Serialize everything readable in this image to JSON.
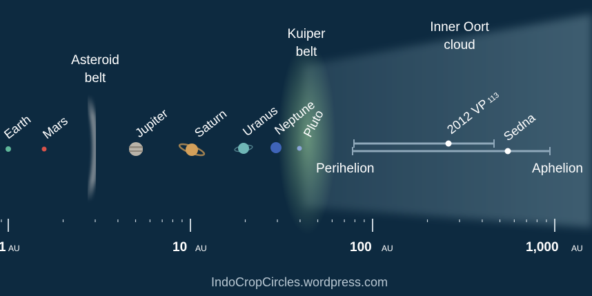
{
  "regions": {
    "asteroid_belt": [
      "Asteroid",
      "belt"
    ],
    "kuiper_belt": [
      "Kuiper",
      "belt"
    ],
    "inner_oort_cloud": [
      "Inner Oort",
      "cloud"
    ]
  },
  "planets": [
    {
      "name": "Earth",
      "color": "#5fb79a"
    },
    {
      "name": "Mars",
      "color": "#d9534a"
    },
    {
      "name": "Jupiter",
      "color": "#b9b3a8"
    },
    {
      "name": "Saturn",
      "color": "#d4a05a"
    },
    {
      "name": "Uranus",
      "color": "#6fb6b6"
    },
    {
      "name": "Neptune",
      "color": "#3f64b8"
    },
    {
      "name": "Pluto",
      "color": "#8aa4d8"
    }
  ],
  "objects": {
    "vp113_name": "2012 VP",
    "vp113_sub": "113",
    "sedna": "Sedna",
    "perihelion": "Perihelion",
    "aphelion": "Aphelion"
  },
  "axis": {
    "unit": "AU",
    "major_ticks": [
      "1",
      "10",
      "100",
      "1,000"
    ]
  },
  "credit": "IndoCropCircles.wordpress.com",
  "colors": {
    "background": "#0d2a40",
    "kuiper_glow": "#9fd69a",
    "oort_haze": "#8fb1bf",
    "orbit_bar": "#8fa8ba"
  }
}
